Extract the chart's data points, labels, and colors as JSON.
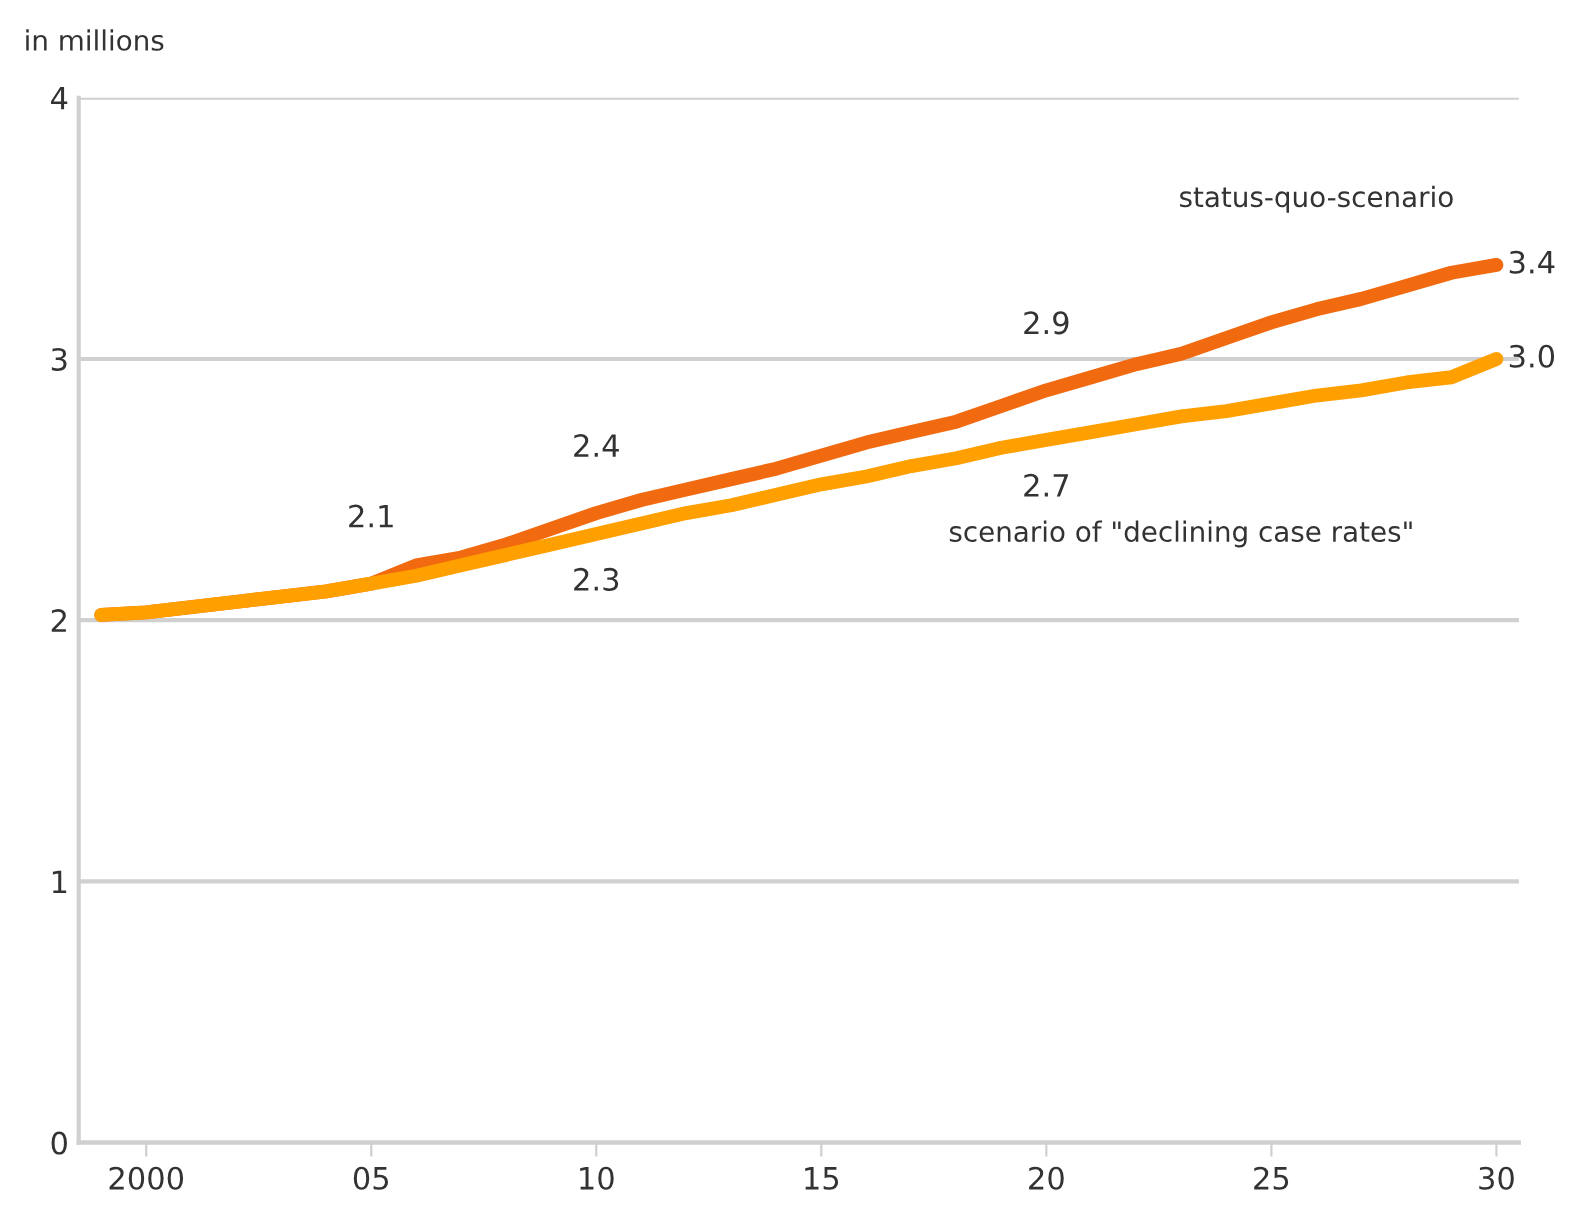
{
  "chart_data": {
    "type": "line",
    "ylabel": "in millions",
    "x": [
      1999,
      2000,
      2001,
      2002,
      2003,
      2004,
      2005,
      2006,
      2007,
      2008,
      2009,
      2010,
      2011,
      2012,
      2013,
      2014,
      2015,
      2016,
      2017,
      2018,
      2019,
      2020,
      2021,
      2022,
      2023,
      2024,
      2025,
      2026,
      2027,
      2028,
      2029,
      2030
    ],
    "series": [
      {
        "name": "status-quo-scenario",
        "color": "#f26a10",
        "values": [
          2.02,
          2.03,
          2.05,
          2.07,
          2.09,
          2.11,
          2.14,
          2.21,
          2.24,
          2.29,
          2.35,
          2.41,
          2.46,
          2.5,
          2.54,
          2.58,
          2.63,
          2.68,
          2.72,
          2.76,
          2.82,
          2.88,
          2.93,
          2.98,
          3.02,
          3.08,
          3.14,
          3.19,
          3.23,
          3.28,
          3.33,
          3.36
        ]
      },
      {
        "name": "scenario of \"declining case rates\"",
        "color": "#ffa000",
        "values": [
          2.02,
          2.03,
          2.05,
          2.07,
          2.09,
          2.11,
          2.14,
          2.17,
          2.21,
          2.25,
          2.29,
          2.33,
          2.37,
          2.41,
          2.44,
          2.48,
          2.52,
          2.55,
          2.59,
          2.62,
          2.66,
          2.69,
          2.72,
          2.75,
          2.78,
          2.8,
          2.83,
          2.86,
          2.88,
          2.91,
          2.93,
          3.0
        ]
      }
    ],
    "annotations": [
      {
        "text": "2.1",
        "x": 2005,
        "y": 2.14
      },
      {
        "text": "2.4",
        "x": 2010,
        "y": 2.41
      },
      {
        "text": "2.9",
        "x": 2020,
        "y": 2.88
      },
      {
        "text": "3.4",
        "x": 2030,
        "y": 3.36
      },
      {
        "text": "2.3",
        "x": 2010,
        "y": 2.33
      },
      {
        "text": "2.7",
        "x": 2020,
        "y": 2.69
      },
      {
        "text": "3.0",
        "x": 2030,
        "y": 3.0
      }
    ],
    "xlim": [
      1998.5,
      2030.5
    ],
    "xticks": [
      {
        "value": 2000,
        "label": "2000"
      },
      {
        "value": 2005,
        "label": "05"
      },
      {
        "value": 2010,
        "label": "10"
      },
      {
        "value": 2015,
        "label": "15"
      },
      {
        "value": 2020,
        "label": "20"
      },
      {
        "value": 2025,
        "label": "25"
      },
      {
        "value": 2030,
        "label": "30"
      }
    ],
    "ylim": [
      0,
      4
    ],
    "yticks": [
      0,
      1,
      2,
      3,
      4
    ],
    "grid": "y",
    "legend": false,
    "marker": "none",
    "line_style": "solid"
  }
}
